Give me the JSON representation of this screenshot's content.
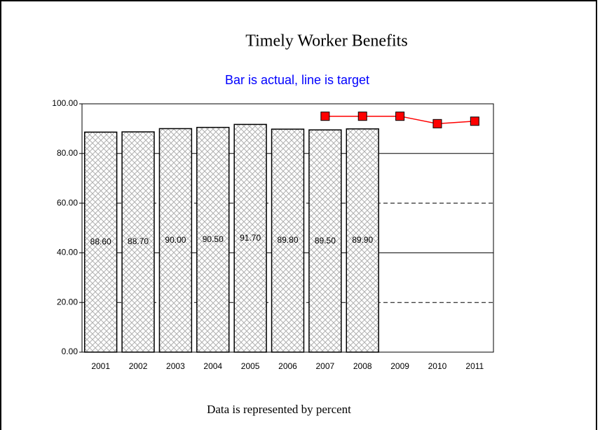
{
  "chart_data": {
    "type": "combo",
    "title": "Timely Worker Benefits",
    "subtitle": "Bar is actual, line is target",
    "footnote": "Data is represented by percent",
    "categories": [
      "2001",
      "2002",
      "2003",
      "2004",
      "2005",
      "2006",
      "2007",
      "2008",
      "2009",
      "2010",
      "2011"
    ],
    "series": [
      {
        "type": "bar",
        "color": "#b0b0b0",
        "values": [
          88.6,
          88.7,
          90.0,
          90.5,
          91.7,
          89.8,
          89.5,
          89.9,
          null,
          null,
          null
        ],
        "value_labels": [
          "88.60",
          "88.70",
          "90.00",
          "90.50",
          "91.70",
          "89.80",
          "89.50",
          "89.90",
          null,
          null,
          null
        ]
      },
      {
        "type": "line",
        "color": "#ff0000",
        "values": [
          null,
          null,
          null,
          null,
          null,
          null,
          95,
          95,
          95,
          92,
          93
        ]
      }
    ],
    "ylim": [
      0,
      100
    ],
    "yticks": [
      {
        "value": 0,
        "label": "0.00"
      },
      {
        "value": 20,
        "label": "20.00"
      },
      {
        "value": 40,
        "label": "40.00"
      },
      {
        "value": 60,
        "label": "60.00"
      },
      {
        "value": 80,
        "label": "80.00"
      },
      {
        "value": 100,
        "label": "100.00"
      }
    ],
    "grid": true
  }
}
